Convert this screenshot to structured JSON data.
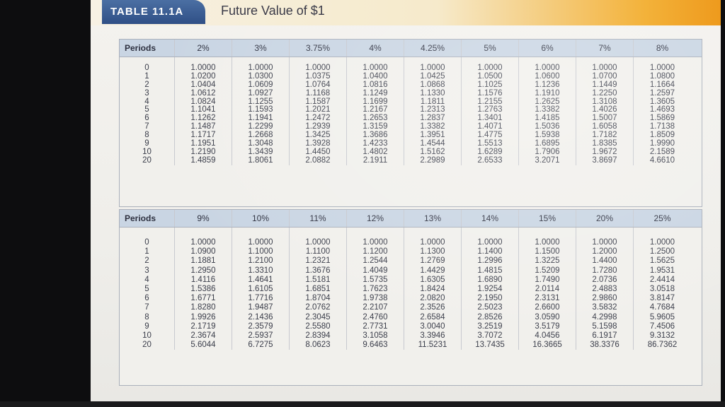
{
  "header": {
    "table_label": "TABLE 11.1A",
    "caption": "Future Value of $1"
  },
  "colors": {
    "tab_blue": "#2f4f86",
    "bar_orange": "#f3b23a",
    "header_row": "#c9d5e3"
  },
  "tables": [
    {
      "periods_label": "Periods",
      "rates": [
        "2%",
        "3%",
        "3.75%",
        "4%",
        "4.25%",
        "5%",
        "6%",
        "7%",
        "8%"
      ],
      "periods": [
        "0",
        "1",
        "2",
        "3",
        "4",
        "5",
        "6",
        "7",
        "8",
        "9",
        "10",
        "20"
      ],
      "columns": [
        [
          "1.0000",
          "1.0200",
          "1.0404",
          "1.0612",
          "1.0824",
          "1.1041",
          "1.1262",
          "1.1487",
          "1.1717",
          "1.1951",
          "1.2190",
          "1.4859"
        ],
        [
          "1.0000",
          "1.0300",
          "1.0609",
          "1.0927",
          "1.1255",
          "1.1593",
          "1.1941",
          "1.2299",
          "1.2668",
          "1.3048",
          "1.3439",
          "1.8061"
        ],
        [
          "1.0000",
          "1.0375",
          "1.0764",
          "1.1168",
          "1.1587",
          "1.2021",
          "1.2472",
          "1.2939",
          "1.3425",
          "1.3928",
          "1.4450",
          "2.0882"
        ],
        [
          "1.0000",
          "1.0400",
          "1.0816",
          "1.1249",
          "1.1699",
          "1.2167",
          "1.2653",
          "1.3159",
          "1.3686",
          "1.4233",
          "1.4802",
          "2.1911"
        ],
        [
          "1.0000",
          "1.0425",
          "1.0868",
          "1.1330",
          "1.1811",
          "1.2313",
          "1.2837",
          "1.3382",
          "1.3951",
          "1.4544",
          "1.5162",
          "2.2989"
        ],
        [
          "1.0000",
          "1.0500",
          "1.1025",
          "1.1576",
          "1.2155",
          "1.2763",
          "1.3401",
          "1.4071",
          "1.4775",
          "1.5513",
          "1.6289",
          "2.6533"
        ],
        [
          "1.0000",
          "1.0600",
          "1.1236",
          "1.1910",
          "1.2625",
          "1.3382",
          "1.4185",
          "1.5036",
          "1.5938",
          "1.6895",
          "1.7906",
          "3.2071"
        ],
        [
          "1.0000",
          "1.0700",
          "1.1449",
          "1.2250",
          "1.3108",
          "1.4026",
          "1.5007",
          "1.6058",
          "1.7182",
          "1.8385",
          "1.9672",
          "3.8697"
        ],
        [
          "1.0000",
          "1.0800",
          "1.1664",
          "1.2597",
          "1.3605",
          "1.4693",
          "1.5869",
          "1.7138",
          "1.8509",
          "1.9990",
          "2.1589",
          "4.6610"
        ]
      ]
    },
    {
      "periods_label": "Periods",
      "rates": [
        "9%",
        "10%",
        "11%",
        "12%",
        "13%",
        "14%",
        "15%",
        "20%",
        "25%"
      ],
      "periods": [
        "0",
        "1",
        "2",
        "3",
        "4",
        "5",
        "6",
        "7",
        "8",
        "9",
        "10",
        "20"
      ],
      "columns": [
        [
          "1.0000",
          "1.0900",
          "1.1881",
          "1.2950",
          "1.4116",
          "1.5386",
          "1.6771",
          "1.8280",
          "1.9926",
          "2.1719",
          "2.3674",
          "5.6044"
        ],
        [
          "1.0000",
          "1.1000",
          "1.2100",
          "1.3310",
          "1.4641",
          "1.6105",
          "1.7716",
          "1.9487",
          "2.1436",
          "2.3579",
          "2.5937",
          "6.7275"
        ],
        [
          "1.0000",
          "1.1100",
          "1.2321",
          "1.3676",
          "1.5181",
          "1.6851",
          "1.8704",
          "2.0762",
          "2.3045",
          "2.5580",
          "2.8394",
          "8.0623"
        ],
        [
          "1.0000",
          "1.1200",
          "1.2544",
          "1.4049",
          "1.5735",
          "1.7623",
          "1.9738",
          "2.2107",
          "2.4760",
          "2.7731",
          "3.1058",
          "9.6463"
        ],
        [
          "1.0000",
          "1.1300",
          "1.2769",
          "1.4429",
          "1.6305",
          "1.8424",
          "2.0820",
          "2.3526",
          "2.6584",
          "3.0040",
          "3.3946",
          "11.5231"
        ],
        [
          "1.0000",
          "1.1400",
          "1.2996",
          "1.4815",
          "1.6890",
          "1.9254",
          "2.1950",
          "2.5023",
          "2.8526",
          "3.2519",
          "3.7072",
          "13.7435"
        ],
        [
          "1.0000",
          "1.1500",
          "1.3225",
          "1.5209",
          "1.7490",
          "2.0114",
          "2.3131",
          "2.6600",
          "3.0590",
          "3.5179",
          "4.0456",
          "16.3665"
        ],
        [
          "1.0000",
          "1.2000",
          "1.4400",
          "1.7280",
          "2.0736",
          "2.4883",
          "2.9860",
          "3.5832",
          "4.2998",
          "5.1598",
          "6.1917",
          "38.3376"
        ],
        [
          "1.0000",
          "1.2500",
          "1.5625",
          "1.9531",
          "2.4414",
          "3.0518",
          "3.8147",
          "4.7684",
          "5.9605",
          "7.4506",
          "9.3132",
          "86.7362"
        ]
      ]
    }
  ]
}
